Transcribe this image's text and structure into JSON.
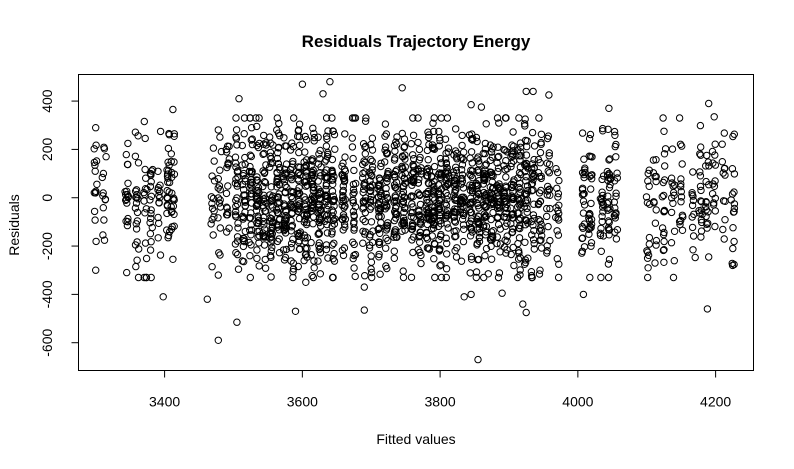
{
  "chart_data": {
    "type": "scatter",
    "title": "Residuals Trajectory Energy",
    "xlabel": "Fitted values",
    "ylabel": "Residuals",
    "xlim": [
      3275,
      4255
    ],
    "ylim": [
      -715,
      510
    ],
    "xticks": [
      3400,
      3600,
      3800,
      4000,
      4200
    ],
    "yticks": [
      -600,
      -400,
      -200,
      0,
      200,
      400
    ],
    "grid": false,
    "marker": "open-circle",
    "color": "#000000",
    "fitted_value_columns": [
      3300,
      3312,
      3345,
      3360,
      3372,
      3381,
      3392,
      3405,
      3412,
      3470,
      3480,
      3492,
      3505,
      3515,
      3525,
      3535,
      3545,
      3555,
      3565,
      3575,
      3585,
      3595,
      3605,
      3615,
      3625,
      3635,
      3645,
      3660,
      3675,
      3690,
      3700,
      3712,
      3722,
      3735,
      3747,
      3760,
      3770,
      3782,
      3790,
      3800,
      3810,
      3822,
      3832,
      3845,
      3855,
      3865,
      3875,
      3885,
      3895,
      3905,
      3915,
      3925,
      3935,
      3945,
      3957,
      3970,
      4008,
      4018,
      4035,
      4045,
      4055,
      4102,
      4112,
      4125,
      4138,
      4150,
      4168,
      4178,
      4188,
      4198,
      4212,
      4225
    ],
    "points_per_column": [
      14,
      12,
      18,
      22,
      16,
      18,
      14,
      24,
      20,
      14,
      16,
      18,
      30,
      32,
      36,
      38,
      34,
      40,
      42,
      38,
      36,
      40,
      42,
      44,
      40,
      42,
      38,
      36,
      30,
      32,
      36,
      38,
      34,
      40,
      42,
      38,
      36,
      40,
      42,
      44,
      40,
      42,
      38,
      40,
      42,
      44,
      40,
      38,
      36,
      40,
      42,
      38,
      30,
      28,
      22,
      18,
      24,
      26,
      22,
      28,
      20,
      14,
      12,
      18,
      14,
      16,
      12,
      18,
      16,
      14,
      12,
      16
    ],
    "residual_sd": 150,
    "seed": 7,
    "outliers": [
      {
        "x": 3600,
        "y": 470
      },
      {
        "x": 3640,
        "y": 480
      },
      {
        "x": 3745,
        "y": 455
      },
      {
        "x": 3925,
        "y": 440
      },
      {
        "x": 3935,
        "y": 440
      },
      {
        "x": 3958,
        "y": 425
      },
      {
        "x": 3508,
        "y": 410
      },
      {
        "x": 3630,
        "y": 430
      },
      {
        "x": 3845,
        "y": 385
      },
      {
        "x": 3860,
        "y": 375
      },
      {
        "x": 4045,
        "y": 370
      },
      {
        "x": 4190,
        "y": 390
      },
      {
        "x": 4198,
        "y": 335
      },
      {
        "x": 4125,
        "y": 275
      },
      {
        "x": 3412,
        "y": 365
      },
      {
        "x": 3300,
        "y": 290
      },
      {
        "x": 3315,
        "y": 170
      },
      {
        "x": 3855,
        "y": -670
      },
      {
        "x": 3478,
        "y": -590
      },
      {
        "x": 3505,
        "y": -515
      },
      {
        "x": 3590,
        "y": -470
      },
      {
        "x": 3690,
        "y": -465
      },
      {
        "x": 3925,
        "y": -475
      },
      {
        "x": 3920,
        "y": -440
      },
      {
        "x": 3890,
        "y": -395
      },
      {
        "x": 3835,
        "y": -410
      },
      {
        "x": 3845,
        "y": -400
      },
      {
        "x": 3462,
        "y": -420
      },
      {
        "x": 3398,
        "y": -410
      },
      {
        "x": 3300,
        "y": -300
      },
      {
        "x": 3345,
        "y": -310
      },
      {
        "x": 4008,
        "y": -400
      },
      {
        "x": 4188,
        "y": -460
      },
      {
        "x": 4102,
        "y": -290
      },
      {
        "x": 4112,
        "y": -270
      },
      {
        "x": 4225,
        "y": -210
      },
      {
        "x": 3412,
        "y": -255
      },
      {
        "x": 3478,
        "y": -320
      },
      {
        "x": 3605,
        "y": -350
      },
      {
        "x": 3690,
        "y": -370
      },
      {
        "x": 3870,
        "y": -315
      },
      {
        "x": 3945,
        "y": -300
      }
    ]
  }
}
